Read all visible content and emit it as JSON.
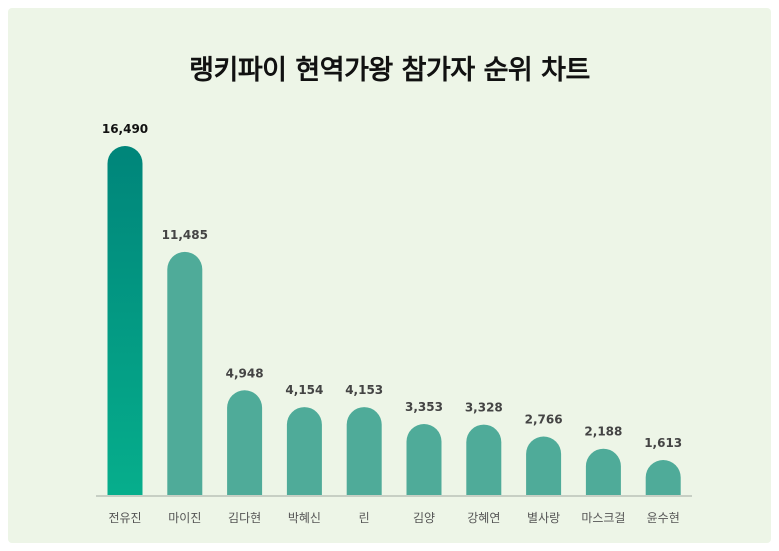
{
  "chart_data": {
    "type": "bar",
    "title": "랭키파이 현역가왕 참가자 순위 차트",
    "xlabel": "",
    "ylabel": "",
    "categories": [
      "전유진",
      "마이진",
      "김다현",
      "박혜신",
      "린",
      "김양",
      "강혜연",
      "별사랑",
      "마스크걸",
      "윤수현"
    ],
    "values": [
      16490,
      11485,
      4948,
      4154,
      4153,
      3353,
      3328,
      2766,
      2188,
      1613
    ],
    "value_labels": [
      "16,490",
      "11,485",
      "4,948",
      "4,154",
      "4,153",
      "3,353",
      "3,328",
      "2,766",
      "2,188",
      "1,613"
    ],
    "ylim": [
      0,
      16490
    ],
    "grid": false,
    "legend": "none",
    "colors": {
      "highlight_top": "#00857a",
      "highlight_bottom": "#06ae8c",
      "bar": "#4fab99",
      "baseline": "#c7cfc4",
      "background": "#edf5e7"
    }
  }
}
